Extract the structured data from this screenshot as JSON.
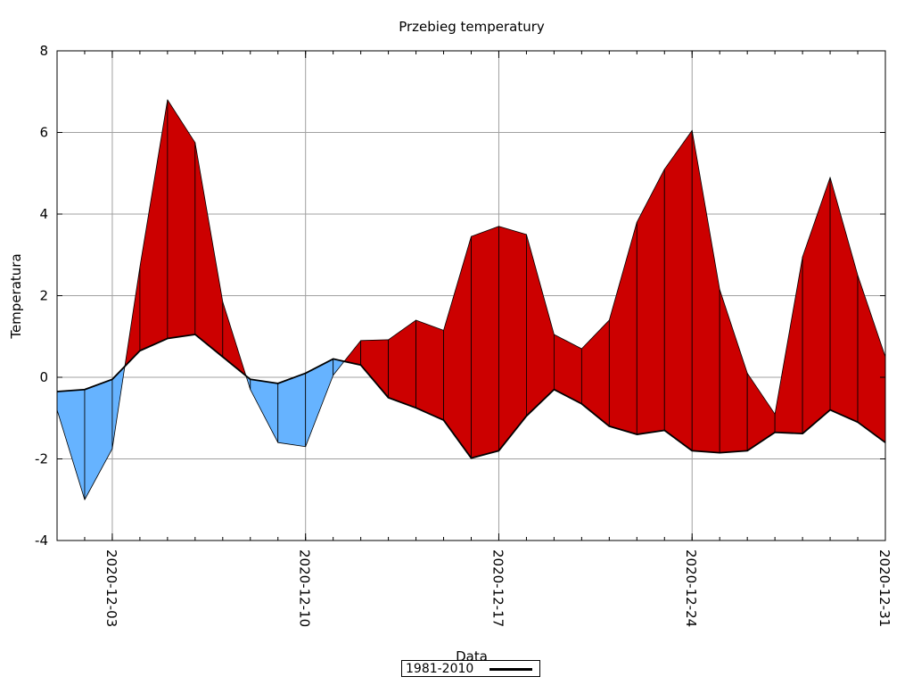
{
  "chart_data": {
    "type": "area",
    "title": "Przebieg temperatury",
    "xlabel": "Data",
    "ylabel": "Temperatura",
    "ylim": [
      -4,
      8
    ],
    "yticks": [
      -4,
      -2,
      0,
      2,
      4,
      6,
      8
    ],
    "xlim": [
      "2020-12-01",
      "2020-12-31"
    ],
    "xtick_labels": [
      "2020-12-03",
      "2020-12-10",
      "2020-12-17",
      "2020-12-24",
      "2020-12-31"
    ],
    "grid": true,
    "legend_position": "bottom-center",
    "colors": {
      "above_normal": "#cc0000",
      "below_normal": "#66b3ff",
      "normal_line": "#000000"
    },
    "dates": [
      "2020-12-01",
      "2020-12-02",
      "2020-12-03",
      "2020-12-04",
      "2020-12-05",
      "2020-12-06",
      "2020-12-07",
      "2020-12-08",
      "2020-12-09",
      "2020-12-10",
      "2020-12-11",
      "2020-12-12",
      "2020-12-13",
      "2020-12-14",
      "2020-12-15",
      "2020-12-16",
      "2020-12-17",
      "2020-12-18",
      "2020-12-19",
      "2020-12-20",
      "2020-12-21",
      "2020-12-22",
      "2020-12-23",
      "2020-12-24",
      "2020-12-25",
      "2020-12-26",
      "2020-12-27",
      "2020-12-28",
      "2020-12-29",
      "2020-12-30",
      "2020-12-31"
    ],
    "series": [
      {
        "values": [
          -0.8,
          -3.0,
          -1.75,
          2.7,
          6.8,
          5.75,
          1.85,
          -0.3,
          -1.6,
          -1.7,
          0.05,
          0.9,
          0.92,
          1.4,
          1.15,
          3.45,
          3.7,
          3.5,
          1.05,
          0.7,
          1.4,
          3.8,
          5.1,
          6.05,
          2.15,
          0.1,
          -0.9,
          2.95,
          4.9,
          2.5,
          0.5
        ]
      },
      {
        "name": "1981-2010",
        "values": [
          -0.35,
          -0.3,
          -0.05,
          0.65,
          0.95,
          1.05,
          0.5,
          -0.05,
          -0.15,
          0.1,
          0.45,
          0.3,
          -0.5,
          -0.75,
          -1.05,
          -1.98,
          -1.8,
          -0.95,
          -0.3,
          -0.65,
          -1.2,
          -1.4,
          -1.3,
          -1.8,
          -1.85,
          -1.8,
          -1.35,
          -1.38,
          -0.8,
          -1.1,
          -1.6
        ]
      }
    ]
  }
}
